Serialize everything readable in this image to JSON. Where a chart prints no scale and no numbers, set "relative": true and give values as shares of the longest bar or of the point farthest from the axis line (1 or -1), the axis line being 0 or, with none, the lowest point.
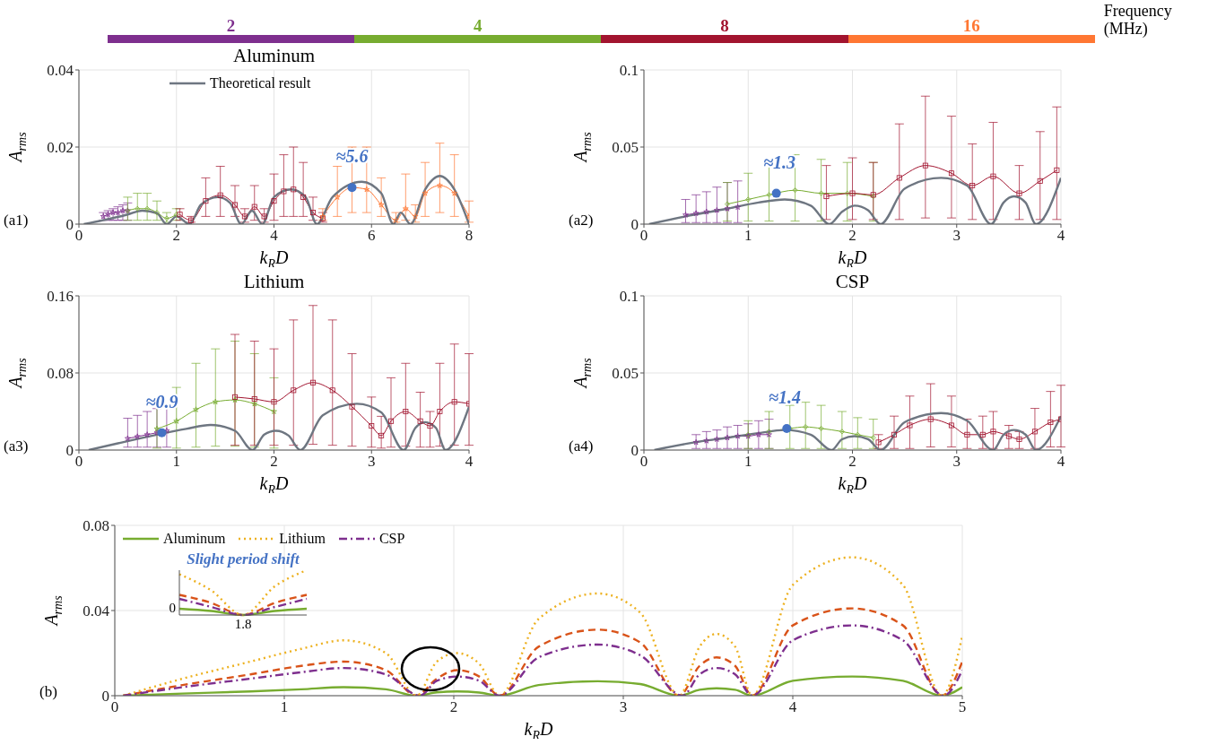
{
  "chart_data": [
    {
      "type": "other",
      "legend_title": "Frequency (MHz)",
      "categories": [
        "2",
        "4",
        "8",
        "16"
      ],
      "colors": [
        "#7e2f8e",
        "#77ac30",
        "#a2142f",
        "#ff7733"
      ]
    },
    {
      "type": "line",
      "title": "Aluminum",
      "xlabel": "k$_{R}$D",
      "ylabel": "A$_{rms}$",
      "xlim": [
        0,
        8
      ],
      "xticks": [
        0,
        2,
        4,
        6,
        8
      ],
      "ylim": [
        0,
        0.04
      ],
      "yticks": [
        0,
        0.02,
        0.04
      ],
      "grid": true,
      "legend": "top left",
      "annotations": [
        "(a1)",
        {
          "text": "≈5.6",
          "x": 5.6,
          "y": 0.0095
        }
      ],
      "series": [
        {
          "color": "#7e2f8e",
          "marker": "star",
          "x": [
            0.5,
            0.6,
            0.7,
            0.8,
            0.9,
            1.0
          ],
          "values": [
            0.002,
            0.0025,
            0.003,
            0.003,
            0.0035,
            0.0035
          ],
          "errors": [
            [
              0.001,
              0.003
            ],
            [
              0.001,
              0.0035
            ],
            [
              0.001,
              0.004
            ],
            [
              0.001,
              0.0045
            ],
            [
              0.001,
              0.005
            ],
            [
              0.001,
              0.0055
            ]
          ]
        },
        {
          "color": "#77ac30",
          "marker": "diamond",
          "x": [
            1.0,
            1.2,
            1.4,
            1.6,
            1.8,
            2.0
          ],
          "values": [
            0.0035,
            0.004,
            0.004,
            0.003,
            0.0015,
            0.0025
          ],
          "errors": [
            [
              0.001,
              0.007
            ],
            [
              0.001,
              0.008
            ],
            [
              0.001,
              0.008
            ],
            [
              0.001,
              0.006
            ],
            [
              0.0005,
              0.003
            ],
            [
              0.001,
              0.004
            ]
          ]
        },
        {
          "color": "#a2142f",
          "marker": "square",
          "x": [
            2.07,
            2.3,
            2.6,
            2.9,
            3.2,
            3.4,
            3.6,
            3.8,
            4.0,
            4.2,
            4.4,
            4.6,
            4.8,
            5.0
          ],
          "values": [
            0.0025,
            0.001,
            0.006,
            0.0075,
            0.005,
            0.002,
            0.0045,
            0.002,
            0.006,
            0.0085,
            0.009,
            0.007,
            0.003,
            0.0015
          ],
          "errors": [
            [
              0.001,
              0.004
            ],
            [
              0.0005,
              0.002
            ],
            [
              0.002,
              0.012
            ],
            [
              0.002,
              0.015
            ],
            [
              0.002,
              0.01
            ],
            [
              0.0005,
              0.004
            ],
            [
              0.001,
              0.01
            ],
            [
              0.0005,
              0.004
            ],
            [
              0.001,
              0.013
            ],
            [
              0.002,
              0.018
            ],
            [
              0.002,
              0.02
            ],
            [
              0.002,
              0.016
            ],
            [
              0.001,
              0.007
            ],
            [
              0.0005,
              0.003
            ]
          ]
        },
        {
          "color": "#ff7733",
          "marker": "star",
          "x": [
            5.0,
            5.3,
            5.6,
            5.9,
            6.2,
            6.5,
            6.7,
            6.9,
            7.1,
            7.4,
            7.7,
            8.0
          ],
          "values": [
            0.002,
            0.007,
            0.0095,
            0.009,
            0.005,
            0.001,
            0.004,
            0.002,
            0.008,
            0.01,
            0.008,
            0.002
          ],
          "errors": [
            [
              0.001,
              0.004
            ],
            [
              0.002,
              0.015
            ],
            [
              0.003,
              0.02
            ],
            [
              0.003,
              0.02
            ],
            [
              0.002,
              0.012
            ],
            [
              0.0005,
              0.003
            ],
            [
              0.001,
              0.013
            ],
            [
              0.0005,
              0.005
            ],
            [
              0.002,
              0.016
            ],
            [
              0.003,
              0.021
            ],
            [
              0.002,
              0.018
            ],
            [
              0.0005,
              0.006
            ]
          ]
        },
        {
          "name": "Theoretical result",
          "color": "#6e7681",
          "marker": "none",
          "x": [
            0.1,
            0.5,
            1.0,
            1.3,
            1.6,
            1.8,
            2.0,
            2.27,
            2.5,
            2.85,
            3.1,
            3.33,
            3.55,
            3.76,
            4.0,
            4.35,
            4.65,
            4.88,
            5.2,
            5.8,
            6.2,
            6.45,
            6.6,
            6.8,
            7.1,
            7.4,
            7.7,
            8.0
          ],
          "values": [
            0,
            0.001,
            0.0025,
            0.0035,
            0.0028,
            0,
            0.002,
            0,
            0.005,
            0.007,
            0.0055,
            0,
            0.0035,
            0,
            0.007,
            0.009,
            0.007,
            0,
            0.007,
            0.011,
            0.008,
            0,
            0.003,
            0,
            0.009,
            0.0125,
            0.009,
            0
          ]
        },
        {
          "type": "scatter",
          "color": "#4472c4",
          "marker": "circle",
          "x": [
            5.6
          ],
          "values": [
            0.0095
          ]
        }
      ]
    },
    {
      "type": "line",
      "xlabel": "k$_{R}$D",
      "ylabel": "A$_{rms}$",
      "xlim": [
        0,
        4
      ],
      "xticks": [
        0,
        1,
        2,
        3,
        4
      ],
      "ylim": [
        0,
        0.1
      ],
      "yticks": [
        0,
        0.05,
        0.1
      ],
      "grid": true,
      "annotations": [
        "(a2)",
        {
          "text": "≈1.3",
          "x": 1.3,
          "y": 0.02
        }
      ],
      "series": [
        {
          "color": "#7e2f8e",
          "marker": "star",
          "x": [
            0.4,
            0.5,
            0.6,
            0.7,
            0.8,
            0.9
          ],
          "values": [
            0.006,
            0.007,
            0.008,
            0.009,
            0.01,
            0.011
          ],
          "errors": [
            [
              0.001,
              0.016
            ],
            [
              0.001,
              0.019
            ],
            [
              0.001,
              0.021
            ],
            [
              0.001,
              0.024
            ],
            [
              0.001,
              0.027
            ],
            [
              0.001,
              0.028
            ]
          ]
        },
        {
          "color": "#77ac30",
          "marker": "diamond",
          "x": [
            0.8,
            1.0,
            1.2,
            1.45,
            1.7,
            1.95,
            2.2
          ],
          "values": [
            0.013,
            0.016,
            0.019,
            0.022,
            0.02,
            0.02,
            0.018
          ],
          "errors": [
            [
              0.002,
              0.027
            ],
            [
              0.002,
              0.033
            ],
            [
              0.002,
              0.04
            ],
            [
              0.002,
              0.045
            ],
            [
              0.002,
              0.042
            ],
            [
              0.002,
              0.04
            ],
            [
              0.002,
              0.04
            ]
          ]
        },
        {
          "color": "#a2142f",
          "marker": "square",
          "x": [
            1.75,
            2.0,
            2.2,
            2.45,
            2.7,
            2.95,
            3.15,
            3.35,
            3.6,
            3.8,
            3.96
          ],
          "values": [
            0.018,
            0.02,
            0.019,
            0.03,
            0.038,
            0.033,
            0.025,
            0.031,
            0.02,
            0.028,
            0.035
          ],
          "errors": [
            [
              0.003,
              0.038
            ],
            [
              0.003,
              0.043
            ],
            [
              0.003,
              0.04
            ],
            [
              0.003,
              0.065
            ],
            [
              0.004,
              0.083
            ],
            [
              0.004,
              0.07
            ],
            [
              0.003,
              0.052
            ],
            [
              0.003,
              0.066
            ],
            [
              0.003,
              0.038
            ],
            [
              0.003,
              0.06
            ],
            [
              0.003,
              0.076
            ]
          ]
        },
        {
          "color": "#6e7681",
          "marker": "none",
          "x": [
            0.05,
            0.4,
            0.8,
            1.1,
            1.35,
            1.6,
            1.78,
            1.9,
            2.02,
            2.15,
            2.27,
            2.5,
            2.85,
            3.1,
            3.33,
            3.45,
            3.55,
            3.66,
            3.76,
            4.0
          ],
          "values": [
            0,
            0.005,
            0.01,
            0.014,
            0.016,
            0.012,
            0,
            0.008,
            0.012,
            0.009,
            0,
            0.023,
            0.03,
            0.025,
            0,
            0.014,
            0.018,
            0.014,
            0,
            0.03
          ]
        },
        {
          "type": "scatter",
          "color": "#4472c4",
          "marker": "circle",
          "x": [
            1.27
          ],
          "values": [
            0.02
          ]
        }
      ]
    },
    {
      "type": "line",
      "title": "Lithium",
      "xlabel": "k$_{R}$D",
      "ylabel": "A$_{rms}$",
      "xlim": [
        0,
        4
      ],
      "xticks": [
        0,
        1,
        2,
        3,
        4
      ],
      "ylim": [
        0,
        0.16
      ],
      "yticks": [
        0,
        0.08,
        0.16
      ],
      "grid": true,
      "annotations": [
        "(a3)",
        {
          "text": "≈0.9",
          "x": 0.85,
          "y": 0.018
        }
      ],
      "series": [
        {
          "color": "#7e2f8e",
          "marker": "star",
          "x": [
            0.5,
            0.6,
            0.7,
            0.8,
            0.9
          ],
          "values": [
            0.012,
            0.014,
            0.016,
            0.018,
            0.02
          ],
          "errors": [
            [
              0.003,
              0.033
            ],
            [
              0.003,
              0.036
            ],
            [
              0.003,
              0.04
            ],
            [
              0.003,
              0.043
            ],
            [
              0.003,
              0.045
            ]
          ]
        },
        {
          "color": "#77ac30",
          "marker": "star",
          "x": [
            0.8,
            1.0,
            1.2,
            1.4,
            1.6,
            1.8,
            2.0
          ],
          "values": [
            0.022,
            0.03,
            0.042,
            0.05,
            0.052,
            0.048,
            0.04
          ],
          "errors": [
            [
              0.002,
              0.047
            ],
            [
              0.002,
              0.065
            ],
            [
              0.003,
              0.09
            ],
            [
              0.004,
              0.105
            ],
            [
              0.004,
              0.113
            ],
            [
              0.003,
              0.1
            ],
            [
              0.002,
              0.075
            ]
          ]
        },
        {
          "color": "#a2142f",
          "marker": "square",
          "x": [
            1.6,
            1.8,
            2.0,
            2.2,
            2.4,
            2.6,
            2.8,
            3.0,
            3.1,
            3.2,
            3.35,
            3.5,
            3.6,
            3.7,
            3.85,
            4.0
          ],
          "values": [
            0.055,
            0.053,
            0.05,
            0.062,
            0.07,
            0.062,
            0.045,
            0.025,
            0.015,
            0.03,
            0.04,
            0.03,
            0.025,
            0.04,
            0.05,
            0.048
          ],
          "errors": [
            [
              0.005,
              0.12
            ],
            [
              0.005,
              0.113
            ],
            [
              0.005,
              0.105
            ],
            [
              0.005,
              0.135
            ],
            [
              0.006,
              0.15
            ],
            [
              0.005,
              0.135
            ],
            [
              0.004,
              0.1
            ],
            [
              0.003,
              0.055
            ],
            [
              0.002,
              0.035
            ],
            [
              0.003,
              0.075
            ],
            [
              0.004,
              0.09
            ],
            [
              0.003,
              0.06
            ],
            [
              0.003,
              0.04
            ],
            [
              0.004,
              0.09
            ],
            [
              0.005,
              0.11
            ],
            [
              0.005,
              0.1
            ]
          ]
        },
        {
          "color": "#6e7681",
          "marker": "none",
          "x": [
            0.1,
            0.4,
            0.8,
            1.1,
            1.35,
            1.6,
            1.78,
            1.9,
            2.02,
            2.15,
            2.27,
            2.5,
            2.85,
            3.1,
            3.33,
            3.45,
            3.55,
            3.66,
            3.76,
            4.0
          ],
          "values": [
            0,
            0.007,
            0.016,
            0.022,
            0.026,
            0.02,
            0,
            0.016,
            0.02,
            0.015,
            0,
            0.036,
            0.048,
            0.039,
            0,
            0.023,
            0.029,
            0.023,
            0,
            0.045
          ]
        },
        {
          "type": "scatter",
          "color": "#4472c4",
          "marker": "circle",
          "x": [
            0.85
          ],
          "values": [
            0.018
          ]
        }
      ]
    },
    {
      "type": "line",
      "title": "CSP",
      "xlabel": "k$_{R}$D",
      "ylabel": "A$_{rms}$",
      "xlim": [
        0,
        4
      ],
      "xticks": [
        0,
        1,
        2,
        3,
        4
      ],
      "ylim": [
        0,
        0.1
      ],
      "yticks": [
        0,
        0.05,
        0.1
      ],
      "grid": true,
      "annotations": [
        "(a4)",
        {
          "text": "≈1.4",
          "x": 1.35,
          "y": 0.014
        }
      ],
      "series": [
        {
          "color": "#7e2f8e",
          "marker": "star",
          "x": [
            0.5,
            0.6,
            0.7,
            0.8,
            0.9,
            1.0,
            1.1,
            1.2
          ],
          "values": [
            0.005,
            0.006,
            0.007,
            0.008,
            0.009,
            0.009,
            0.01,
            0.01
          ],
          "errors": [
            [
              0.001,
              0.01
            ],
            [
              0.001,
              0.012
            ],
            [
              0.001,
              0.013
            ],
            [
              0.001,
              0.015
            ],
            [
              0.001,
              0.016
            ],
            [
              0.001,
              0.017
            ],
            [
              0.001,
              0.019
            ],
            [
              0.001,
              0.02
            ]
          ]
        },
        {
          "color": "#77ac30",
          "marker": "diamond",
          "x": [
            1.0,
            1.2,
            1.4,
            1.55,
            1.7,
            1.9,
            2.05,
            2.2
          ],
          "values": [
            0.01,
            0.012,
            0.014,
            0.015,
            0.014,
            0.012,
            0.01,
            0.008
          ],
          "errors": [
            [
              0.001,
              0.019
            ],
            [
              0.001,
              0.025
            ],
            [
              0.001,
              0.029
            ],
            [
              0.001,
              0.031
            ],
            [
              0.001,
              0.029
            ],
            [
              0.001,
              0.025
            ],
            [
              0.001,
              0.021
            ],
            [
              0.001,
              0.02
            ]
          ]
        },
        {
          "color": "#a2142f",
          "marker": "square",
          "x": [
            2.25,
            2.4,
            2.55,
            2.75,
            2.95,
            3.1,
            3.25,
            3.35,
            3.5,
            3.6,
            3.75,
            3.9,
            4.0
          ],
          "values": [
            0.005,
            0.01,
            0.016,
            0.02,
            0.016,
            0.01,
            0.01,
            0.012,
            0.009,
            0.007,
            0.012,
            0.018,
            0.02
          ],
          "errors": [
            [
              0.001,
              0.01
            ],
            [
              0.001,
              0.022
            ],
            [
              0.001,
              0.035
            ],
            [
              0.002,
              0.043
            ],
            [
              0.002,
              0.035
            ],
            [
              0.001,
              0.02
            ],
            [
              0.001,
              0.022
            ],
            [
              0.001,
              0.025
            ],
            [
              0.001,
              0.016
            ],
            [
              0.001,
              0.012
            ],
            [
              0.001,
              0.027
            ],
            [
              0.002,
              0.038
            ],
            [
              0.002,
              0.042
            ]
          ]
        },
        {
          "color": "#6e7681",
          "marker": "none",
          "x": [
            0.1,
            0.4,
            0.8,
            1.1,
            1.35,
            1.6,
            1.8,
            1.9,
            2.02,
            2.15,
            2.27,
            2.5,
            2.85,
            3.1,
            3.35,
            3.45,
            3.55,
            3.66,
            3.76,
            4.0
          ],
          "values": [
            0,
            0.004,
            0.008,
            0.011,
            0.013,
            0.01,
            0,
            0.007,
            0.009,
            0.007,
            0,
            0.018,
            0.024,
            0.019,
            0,
            0.01,
            0.013,
            0.01,
            0,
            0.022
          ]
        },
        {
          "type": "scatter",
          "color": "#4472c4",
          "marker": "circle",
          "x": [
            1.37
          ],
          "values": [
            0.014
          ]
        }
      ]
    },
    {
      "type": "line",
      "xlabel": "k$_{R}$D",
      "ylabel": "A$_{rms}$",
      "xlim": [
        0,
        5
      ],
      "xticks": [
        0,
        1,
        2,
        3,
        4,
        5
      ],
      "ylim": [
        0,
        0.08
      ],
      "yticks": [
        0,
        0.04,
        0.08
      ],
      "grid": true,
      "legend": "top left",
      "annotations": [
        "(b)"
      ],
      "series": [
        {
          "name": "Aluminum",
          "color": "#77ac30",
          "line_style": "solid",
          "x": [
            0.05,
            0.4,
            0.8,
            1.1,
            1.35,
            1.6,
            1.78,
            1.9,
            2.02,
            2.15,
            2.27,
            2.5,
            2.85,
            3.1,
            3.33,
            3.45,
            3.55,
            3.66,
            3.76,
            4.0,
            4.35,
            4.65,
            4.88,
            5.0
          ],
          "values": [
            0,
            0.001,
            0.002,
            0.003,
            0.004,
            0.003,
            0,
            0.0016,
            0.002,
            0.0015,
            0,
            0.005,
            0.0068,
            0.0055,
            0,
            0.0028,
            0.0035,
            0.0028,
            0,
            0.007,
            0.009,
            0.007,
            0,
            0.004
          ]
        },
        {
          "color": "#d95319",
          "line_style": "dashed",
          "x": [
            0.05,
            0.4,
            0.8,
            1.1,
            1.35,
            1.6,
            1.78,
            1.9,
            2.02,
            2.15,
            2.27,
            2.5,
            2.85,
            3.1,
            3.33,
            3.45,
            3.55,
            3.66,
            3.76,
            4.0,
            4.35,
            4.65,
            4.88,
            5.0
          ],
          "values": [
            0,
            0.005,
            0.01,
            0.014,
            0.016,
            0.012,
            0,
            0.008,
            0.012,
            0.009,
            0,
            0.023,
            0.031,
            0.025,
            0,
            0.014,
            0.018,
            0.014,
            0,
            0.033,
            0.041,
            0.033,
            0,
            0.016
          ]
        },
        {
          "name": "Lithium",
          "color": "#edb120",
          "line_style": "dotted",
          "x": [
            0.05,
            0.4,
            0.8,
            1.1,
            1.35,
            1.6,
            1.78,
            1.9,
            2.02,
            2.15,
            2.27,
            2.5,
            2.85,
            3.1,
            3.33,
            3.45,
            3.55,
            3.66,
            3.76,
            4.0,
            4.35,
            4.65,
            4.88,
            5.0
          ],
          "values": [
            0,
            0.008,
            0.016,
            0.022,
            0.026,
            0.02,
            0,
            0.016,
            0.02,
            0.015,
            0,
            0.036,
            0.048,
            0.039,
            0,
            0.023,
            0.029,
            0.023,
            0,
            0.052,
            0.065,
            0.052,
            0,
            0.028
          ]
        },
        {
          "name": "CSP",
          "color": "#7e2f8e",
          "line_style": "dashdot",
          "x": [
            0.05,
            0.4,
            0.8,
            1.1,
            1.35,
            1.6,
            1.8,
            1.9,
            2.02,
            2.15,
            2.27,
            2.5,
            2.85,
            3.1,
            3.35,
            3.45,
            3.55,
            3.66,
            3.76,
            4.0,
            4.35,
            4.65,
            4.89,
            5.0
          ],
          "values": [
            0,
            0.004,
            0.008,
            0.011,
            0.013,
            0.01,
            0,
            0.007,
            0.009,
            0.007,
            0,
            0.018,
            0.024,
            0.019,
            0,
            0.01,
            0.013,
            0.01,
            0,
            0.026,
            0.033,
            0.026,
            0,
            0.012
          ]
        }
      ]
    },
    {
      "type": "line",
      "title": "Slight period shift",
      "relative": true,
      "categories": [
        null,
        null,
        null,
        null,
        null
      ],
      "annotations": [
        "1.8",
        "0"
      ],
      "series": [
        {
          "color": "#77ac30",
          "line_style": "solid",
          "values": [
            0.14,
            0.09,
            0,
            0.09,
            0.14
          ]
        },
        {
          "color": "#d95319",
          "line_style": "dashed",
          "values": [
            0.45,
            0.27,
            0,
            0.27,
            0.45
          ]
        },
        {
          "color": "#edb120",
          "line_style": "dotted",
          "values": [
            0.91,
            0.55,
            0,
            0.64,
            1
          ]
        },
        {
          "color": "#7e2f8e",
          "line_style": "dashdot",
          "values": [
            0.36,
            0.18,
            0,
            0.18,
            0.36
          ]
        }
      ]
    }
  ]
}
